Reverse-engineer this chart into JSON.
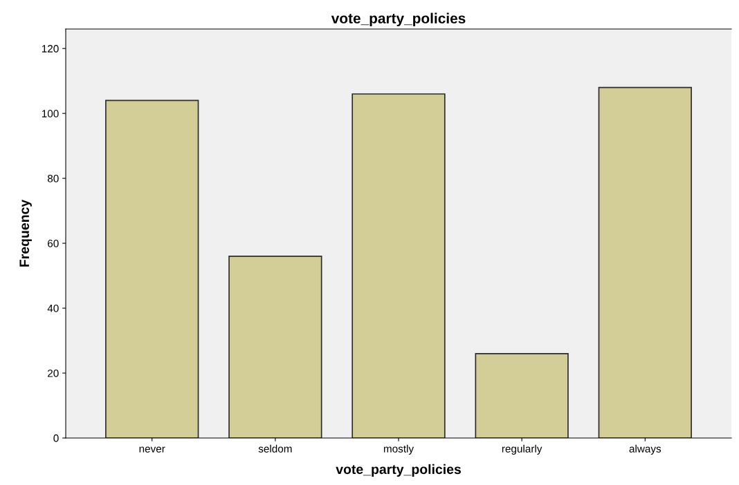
{
  "chart_data": {
    "type": "bar",
    "title": "vote_party_policies",
    "xlabel": "vote_party_policies",
    "ylabel": "Frequency",
    "categories": [
      "never",
      "seldom",
      "mostly",
      "regularly",
      "always"
    ],
    "values": [
      104,
      56,
      106,
      26,
      108
    ],
    "color": "#d3ce98",
    "ylim": [
      0,
      126
    ],
    "yticks": [
      0,
      20,
      40,
      60,
      80,
      100,
      120
    ],
    "grid": false,
    "legend": false
  }
}
